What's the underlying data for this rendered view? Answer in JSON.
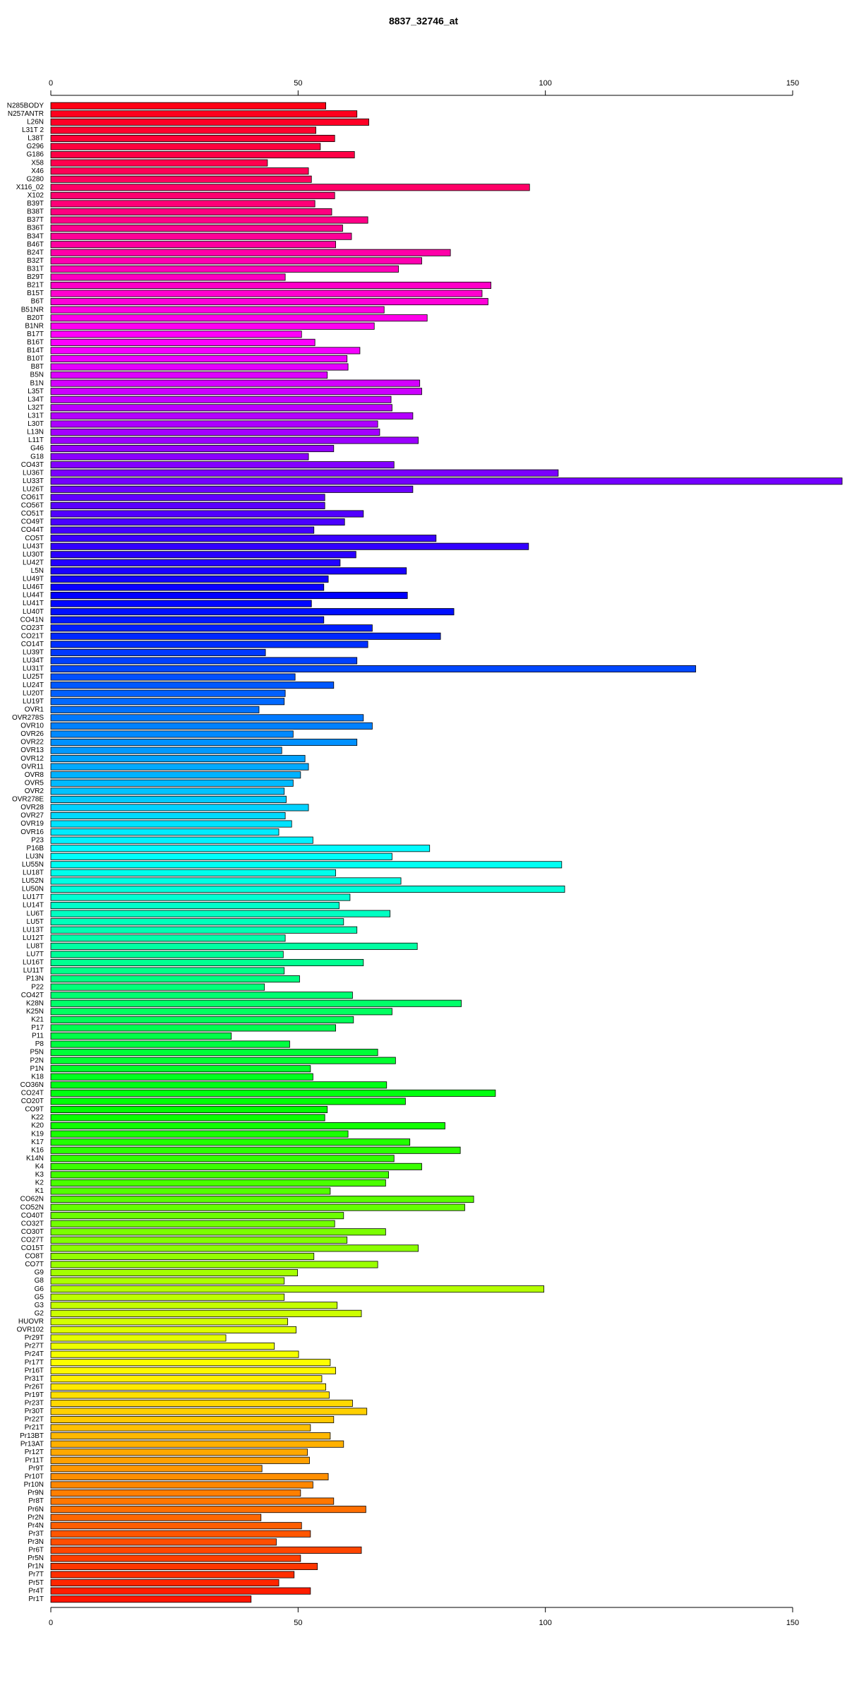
{
  "chart_data": {
    "type": "barh",
    "title": "8837_32746_at",
    "categories": [
      "N285BODY",
      "N257ANTR",
      "L26N",
      "L31T 2",
      "L38T",
      "G296",
      "G186",
      "X58",
      "X46",
      "G280",
      "X116_02",
      "X102",
      "B39T",
      "B38T",
      "B37T",
      "B36T",
      "B34T",
      "B46T",
      "B24T",
      "B32T",
      "B31T",
      "B29T",
      "B21T",
      "B15T",
      "B6T",
      "B51NR",
      "B20T",
      "B1NR",
      "B17T",
      "B16T",
      "B14T",
      "B10T",
      "B8T",
      "B5N",
      "B1N",
      "L35T",
      "L34T",
      "L32T",
      "L31T",
      "L30T",
      "L13N",
      "L11T",
      "G46",
      "G18",
      "CO43T",
      "LU36T",
      "LU33T",
      "LU26T",
      "CO61T",
      "CO56T",
      "CO51T",
      "CO49T",
      "CO44T",
      "CO5T",
      "LU43T",
      "LU30T",
      "LU42T",
      "L5N",
      "LU49T",
      "LU46T",
      "LU44T",
      "LU41T",
      "LU40T",
      "CO41N",
      "CO23T",
      "CO21T",
      "CO14T",
      "LU39T",
      "LU34T",
      "LU31T",
      "LU25T",
      "LU24T",
      "LU20T",
      "LU19T",
      "OVR1",
      "OVR278S",
      "OVR10",
      "OVR26",
      "OVR22",
      "OVR13",
      "OVR12",
      "OVR11",
      "OVR8",
      "OVR5",
      "OVR2",
      "OVR278E",
      "OVR28",
      "OVR27",
      "OVR19",
      "OVR16",
      "P23",
      "P16B",
      "LU3N",
      "LU55N",
      "LU18T",
      "LU52N",
      "LU50N",
      "LU17T",
      "LU14T",
      "LU6T",
      "LU5T",
      "LU13T",
      "LU12T",
      "LU8T",
      "LU7T",
      "LU16T",
      "LU11T",
      "P13N",
      "P22",
      "CO42T",
      "K28N",
      "K25N",
      "K21",
      "P17",
      "P11",
      "P8",
      "P5N",
      "P2N",
      "P1N",
      "K18",
      "CO36N",
      "CO24T",
      "CO20T",
      "CO9T",
      "K22",
      "K20",
      "K19",
      "K17",
      "K16",
      "K14N",
      "K4",
      "K3",
      "K2",
      "K1",
      "CO62N",
      "CO52N",
      "CO40T",
      "CO32T",
      "CO30T",
      "CO27T",
      "CO15T",
      "CO8T",
      "CO7T",
      "G9",
      "G8",
      "G6",
      "G5",
      "G3",
      "G2",
      "HUOVR",
      "OVR102",
      "Pr29T",
      "Pr27T",
      "Pr24T",
      "Pr17T",
      "Pr16T",
      "Pr31T",
      "Pr26T",
      "Pr19T",
      "Pr23T",
      "Pr30T",
      "Pr22T",
      "Pr21T",
      "Pr13BT",
      "Pr13AT",
      "Pr12T",
      "Pr11T",
      "Pr9T",
      "Pr10T",
      "Pr10N",
      "Pr9N",
      "Pr8T",
      "Pr6N",
      "Pr2N",
      "Pr4N",
      "Pr3T",
      "Pr3N",
      "Pr6T",
      "Pr5N",
      "Pr1N",
      "Pr7T",
      "Pr5T",
      "Pr4T",
      "Pr1T"
    ],
    "values": [
      55.6,
      61.9,
      64.3,
      53.6,
      57.4,
      54.5,
      61.4,
      43.8,
      52.1,
      52.7,
      96.8,
      57.4,
      53.4,
      56.8,
      64.1,
      59.0,
      60.8,
      57.6,
      80.8,
      75.0,
      70.3,
      47.4,
      89.0,
      87.2,
      88.4,
      67.4,
      76.1,
      65.4,
      50.7,
      53.4,
      62.5,
      59.9,
      60.1,
      55.9,
      74.6,
      75.0,
      68.8,
      69.0,
      73.2,
      66.1,
      66.5,
      74.3,
      57.2,
      52.1,
      69.4,
      102.6,
      160,
      73.2,
      55.4,
      55.4,
      63.2,
      59.4,
      53.2,
      77.9,
      96.6,
      61.7,
      58.5,
      71.9,
      56.1,
      55.2,
      72.1,
      52.7,
      81.5,
      55.2,
      65.0,
      78.8,
      64.1,
      43.4,
      61.9,
      130.4,
      49.4,
      57.2,
      47.4,
      47.2,
      42.1,
      63.2,
      65.0,
      49.0,
      61.9,
      46.7,
      51.4,
      52.1,
      50.5,
      49.0,
      47.2,
      47.6,
      52.1,
      47.4,
      48.7,
      46.1,
      53.0,
      76.6,
      69.0,
      103.3,
      57.6,
      70.8,
      103.9,
      60.5,
      58.3,
      68.6,
      59.2,
      61.9,
      47.4,
      74.1,
      47.0,
      63.2,
      47.2,
      50.3,
      43.2,
      61.0,
      83.0,
      69.0,
      61.2,
      57.6,
      36.5,
      48.3,
      66.1,
      69.7,
      52.5,
      53.0,
      67.9,
      89.9,
      71.7,
      55.9,
      55.4,
      79.7,
      60.1,
      72.6,
      82.8,
      69.4,
      75.0,
      68.3,
      67.7,
      56.5,
      85.5,
      83.7,
      59.2,
      57.4,
      67.7,
      59.9,
      74.3,
      53.2,
      66.1,
      49.9,
      47.2,
      99.7,
      47.2,
      57.9,
      62.8,
      47.9,
      49.6,
      35.4,
      45.2,
      50.1,
      56.5,
      57.6,
      54.8,
      55.6,
      56.3,
      61.0,
      63.9,
      57.2,
      52.5,
      56.5,
      59.2,
      51.9,
      52.3,
      42.7,
      56.1,
      53.0,
      50.5,
      57.2,
      63.7,
      42.5,
      50.7,
      52.5,
      45.6,
      62.8,
      50.5,
      53.9,
      49.2,
      46.1,
      52.5,
      40.5
    ],
    "palette": "rainbow",
    "xlim": [
      0,
      150
    ],
    "xticks": [
      0,
      50,
      100,
      150
    ],
    "grid": false
  }
}
